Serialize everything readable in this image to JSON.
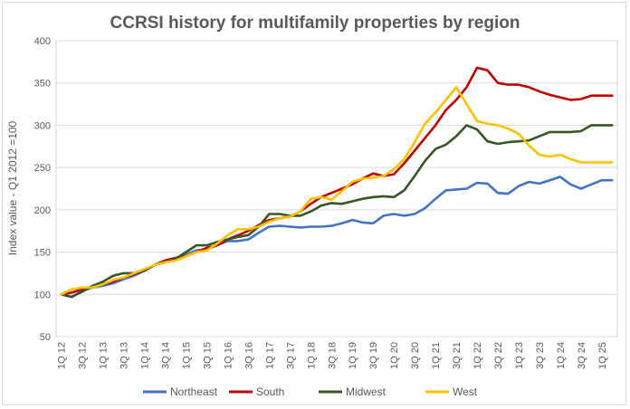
{
  "chart_data": {
    "type": "line",
    "title": "CCRSI history for multifamily properties by region",
    "ylabel": "Index value - Q1 2012 =100",
    "xlabel": "",
    "ylim": [
      50,
      400
    ],
    "yticks": [
      50,
      100,
      150,
      200,
      250,
      300,
      350,
      400
    ],
    "grid": true,
    "legend_position": "bottom",
    "x_tick_labels": [
      "1Q 12",
      "3Q 12",
      "1Q 13",
      "3Q 13",
      "1Q 14",
      "3Q 14",
      "1Q 15",
      "3Q 15",
      "1Q 16",
      "3Q 16",
      "1Q 17",
      "3Q 17",
      "1Q 18",
      "3Q 18",
      "1Q 19",
      "3Q 19",
      "1Q 20",
      "3Q 20",
      "1Q 21",
      "3Q 21",
      "1Q 22",
      "3Q 22",
      "1Q 23",
      "3Q 23",
      "1Q 24",
      "3Q 24",
      "1Q 25"
    ],
    "categories": [
      "1Q 12",
      "2Q 12",
      "3Q 12",
      "4Q 12",
      "1Q 13",
      "2Q 13",
      "3Q 13",
      "4Q 13",
      "1Q 14",
      "2Q 14",
      "3Q 14",
      "4Q 14",
      "1Q 15",
      "2Q 15",
      "3Q 15",
      "4Q 15",
      "1Q 16",
      "2Q 16",
      "3Q 16",
      "4Q 16",
      "1Q 17",
      "2Q 17",
      "3Q 17",
      "4Q 17",
      "1Q 18",
      "2Q 18",
      "3Q 18",
      "4Q 18",
      "1Q 19",
      "2Q 19",
      "3Q 19",
      "4Q 19",
      "1Q 20",
      "2Q 20",
      "3Q 20",
      "4Q 20",
      "1Q 21",
      "2Q 21",
      "3Q 21",
      "4Q 21",
      "1Q 22",
      "2Q 22",
      "3Q 22",
      "4Q 22",
      "1Q 23",
      "2Q 23",
      "3Q 23",
      "4Q 23",
      "1Q 24",
      "2Q 24",
      "3Q 24",
      "4Q 24",
      "1Q 25",
      "2Q 25"
    ],
    "series": [
      {
        "name": "Northeast",
        "color": "#4472c4",
        "values": [
          100,
          97,
          104,
          108,
          110,
          113,
          118,
          122,
          128,
          135,
          140,
          143,
          147,
          152,
          153,
          158,
          163,
          163,
          165,
          173,
          180,
          181,
          180,
          179,
          180,
          180,
          181,
          184,
          188,
          185,
          184,
          193,
          195,
          193,
          195,
          202,
          213,
          223,
          224,
          225,
          232,
          231,
          220,
          219,
          228,
          233,
          231,
          235,
          239,
          230,
          225,
          230,
          235,
          235
        ]
      },
      {
        "name": "South",
        "color": "#c00000",
        "values": [
          100,
          102,
          106,
          109,
          112,
          115,
          120,
          124,
          128,
          135,
          140,
          143,
          145,
          150,
          155,
          158,
          165,
          170,
          175,
          182,
          188,
          190,
          192,
          198,
          207,
          215,
          220,
          225,
          230,
          237,
          243,
          240,
          242,
          255,
          270,
          285,
          300,
          318,
          330,
          345,
          368,
          365,
          350,
          348,
          348,
          345,
          340,
          336,
          333,
          330,
          331,
          335,
          335,
          335
        ]
      },
      {
        "name": "Midwest",
        "color": "#375623",
        "values": [
          100,
          97,
          103,
          110,
          115,
          122,
          125,
          125,
          128,
          135,
          138,
          142,
          150,
          158,
          158,
          162,
          165,
          168,
          170,
          180,
          195,
          195,
          193,
          193,
          198,
          205,
          208,
          207,
          210,
          213,
          215,
          216,
          215,
          223,
          240,
          258,
          272,
          277,
          287,
          300,
          295,
          281,
          278,
          280,
          281,
          282,
          287,
          292,
          292,
          292,
          293,
          300,
          300,
          300
        ]
      },
      {
        "name": "West",
        "color": "#ffc000",
        "values": [
          100,
          106,
          108,
          108,
          112,
          117,
          120,
          125,
          130,
          135,
          138,
          140,
          145,
          150,
          152,
          160,
          170,
          177,
          177,
          180,
          186,
          190,
          192,
          198,
          213,
          215,
          212,
          222,
          233,
          237,
          238,
          240,
          248,
          260,
          280,
          302,
          315,
          330,
          345,
          325,
          305,
          302,
          300,
          296,
          290,
          276,
          265,
          263,
          265,
          260,
          256,
          256,
          256,
          256
        ]
      }
    ]
  }
}
